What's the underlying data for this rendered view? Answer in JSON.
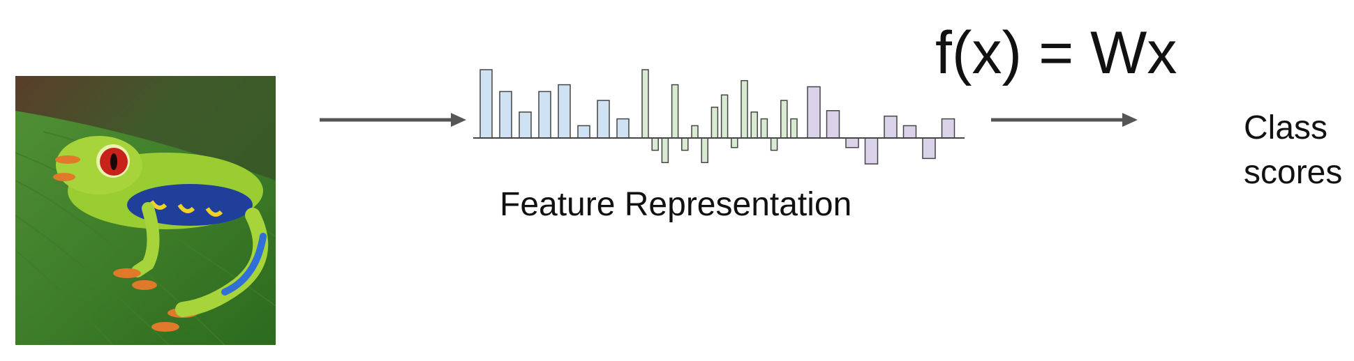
{
  "diagram": {
    "formula": "f(x) = Wx",
    "caption": "Feature Representation",
    "output_label_line1": "Class",
    "output_label_line2": "scores",
    "arrow_color": "#555555",
    "bar_stroke": "#444444"
  },
  "feature_groups": [
    {
      "color": "#cfe2f3",
      "values": [
        1.0,
        0.68,
        0.38,
        0.68,
        0.78,
        0.18,
        0.55,
        0.28
      ]
    },
    {
      "color": "#d9ead3",
      "values": [
        1.0,
        -0.18,
        -0.36,
        0.78,
        -0.18,
        0.18,
        -0.36,
        0.45,
        0.63,
        -0.14,
        0.84,
        0.38,
        0.28,
        -0.18,
        0.55,
        0.28
      ]
    },
    {
      "color": "#d9d2e9",
      "values": [
        0.75,
        0.4,
        -0.14,
        -0.38,
        0.32,
        0.18,
        -0.3,
        0.28
      ]
    }
  ]
}
